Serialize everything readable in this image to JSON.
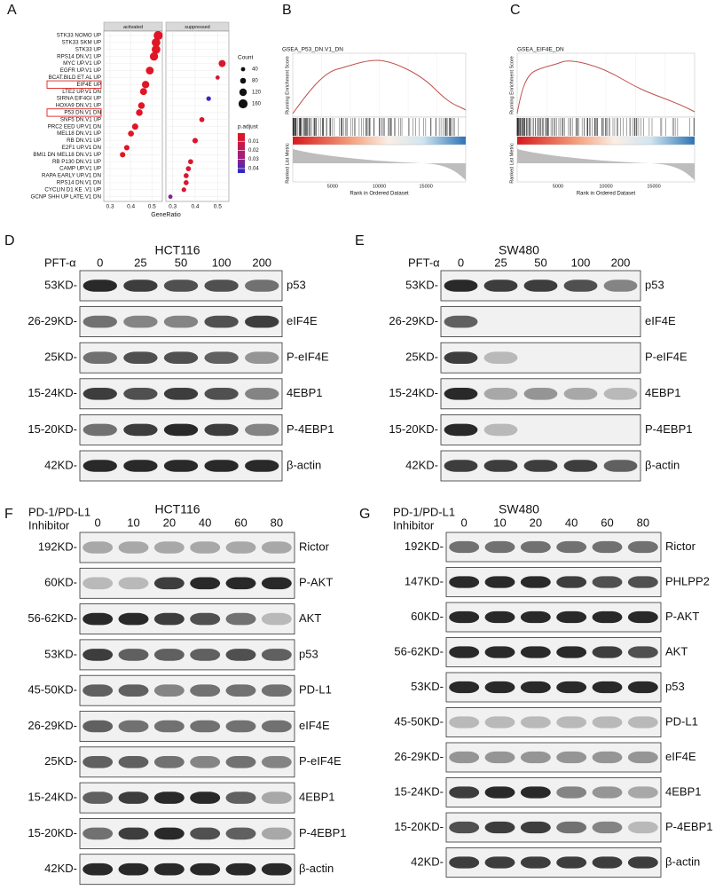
{
  "panel_labels": [
    "A",
    "B",
    "C",
    "D",
    "E",
    "F",
    "G"
  ],
  "chart_data": [
    {
      "type": "dot",
      "facets": [
        "activated",
        "suppressed"
      ],
      "xlabel": "GeneRatio",
      "categories": [
        "STK33 NOMO UP",
        "STK33 SKM UP",
        "STK33 UP",
        "RPS14 DN.V1 UP",
        "MYC UP.V1 UP",
        "EGFR UP.V1 UP",
        "BCAT.BILD ET AL UP",
        "EIF4E UP",
        "LTE2 UP.V1 DN",
        "SIRNA EIF4GI UP",
        "HOXA9 DN.V1 UP",
        "P53 DN.V1 DN",
        "SNF5 DN.V1 UP",
        "PRC2 EED UP.V1 DN",
        "MEL18 DN.V1 UP",
        "RB DN.V1 UP",
        "E2F1 UP.V1 DN",
        "BMI1 DN MEL18 DN.V1 UP",
        "RB P130 DN.V1 UP",
        "CAMP UP.V1 UP",
        "RAPA EARLY UP.V1 DN",
        "RPS14 DN.V1 DN",
        "CYCLIN D1 KE .V1 UP",
        "GCNP SHH UP LATE.V1 DN"
      ],
      "series": [
        {
          "name": "activated",
          "values": [
            0.53,
            0.52,
            0.52,
            0.51,
            null,
            0.49,
            null,
            0.47,
            0.46,
            null,
            0.45,
            0.44,
            null,
            0.42,
            0.4,
            null,
            0.38,
            0.36,
            null,
            null,
            null,
            null,
            null,
            null
          ],
          "sizes": [
            160,
            150,
            150,
            140,
            null,
            130,
            null,
            120,
            110,
            null,
            100,
            100,
            null,
            90,
            80,
            null,
            70,
            70,
            null,
            null,
            null,
            null,
            null,
            null
          ],
          "p_adjust": [
            0.003,
            0.003,
            0.003,
            0.003,
            null,
            0.003,
            null,
            0.003,
            0.003,
            null,
            0.003,
            0.003,
            null,
            0.003,
            0.003,
            null,
            0.003,
            0.003,
            null,
            null,
            null,
            null,
            null,
            null
          ]
        },
        {
          "name": "suppressed",
          "values": [
            null,
            null,
            null,
            null,
            0.52,
            null,
            0.5,
            null,
            null,
            0.46,
            null,
            null,
            0.43,
            null,
            null,
            0.4,
            null,
            null,
            0.38,
            0.37,
            0.36,
            0.36,
            0.35,
            0.29
          ],
          "sizes": [
            null,
            null,
            null,
            null,
            110,
            null,
            40,
            null,
            null,
            50,
            null,
            null,
            60,
            null,
            null,
            70,
            null,
            null,
            60,
            60,
            60,
            60,
            50,
            40
          ],
          "p_adjust": [
            null,
            null,
            null,
            null,
            0.005,
            null,
            0.01,
            null,
            null,
            0.042,
            null,
            null,
            0.005,
            null,
            null,
            0.005,
            null,
            null,
            0.005,
            0.005,
            0.005,
            0.005,
            0.006,
            0.032
          ]
        }
      ],
      "xlim": [
        0.27,
        0.55
      ],
      "xticks": [
        0.3,
        0.4,
        0.5
      ],
      "size_legend": {
        "title": "Count",
        "ticks": [
          40,
          80,
          120,
          160
        ]
      },
      "color_legend": {
        "title": "p.adjust",
        "ticks": [
          0.01,
          0.02,
          0.03,
          0.04
        ],
        "clim": [
          0.001,
          0.045
        ]
      }
    }
  ],
  "gsea": [
    {
      "title": "GSEA_P53_DN.V1_DN",
      "es_label": "Running Enrichment Score",
      "metric_label": "Ranked List Metric",
      "xlabel": "Rank in Ordered Dataset",
      "xticks": [
        "5000",
        "10000",
        "15000"
      ]
    },
    {
      "title": "GSEA_EIF4E_DN",
      "es_label": "Running Enrichment Score",
      "metric_label": "Ranked List Metric",
      "xlabel": "Rank in Ordered Dataset",
      "xticks": [
        "5000",
        "10000",
        "15000"
      ]
    }
  ],
  "blots": [
    {
      "cell_line": "HCT116",
      "treatment": [
        "PFT-α"
      ],
      "lanes": [
        "0",
        "25",
        "50",
        "100",
        "200"
      ],
      "rows": [
        {
          "size": "53KD-",
          "protein": "p53"
        },
        {
          "size": "26-29KD-",
          "protein": "eIF4E"
        },
        {
          "size": "25KD-",
          "protein": "P-eIF4E"
        },
        {
          "size": "15-24KD-",
          "protein": "4EBP1"
        },
        {
          "size": "15-20KD-",
          "protein": "P-4EBP1"
        },
        {
          "size": "42KD-",
          "protein": "β-actin"
        }
      ]
    },
    {
      "cell_line": "SW480",
      "treatment": [
        "PFT-α"
      ],
      "lanes": [
        "0",
        "25",
        "50",
        "100",
        "200"
      ],
      "rows": [
        {
          "size": "53KD-",
          "protein": "p53"
        },
        {
          "size": "26-29KD-",
          "protein": "eIF4E"
        },
        {
          "size": "25KD-",
          "protein": "P-eIF4E"
        },
        {
          "size": "15-24KD-",
          "protein": "4EBP1"
        },
        {
          "size": "15-20KD-",
          "protein": "P-4EBP1"
        },
        {
          "size": "42KD-",
          "protein": "β-actin"
        }
      ]
    },
    {
      "cell_line": "HCT116",
      "treatment": [
        "PD-1/PD-L1",
        "Inhibitor"
      ],
      "lanes": [
        "0",
        "10",
        "20",
        "40",
        "60",
        "80"
      ],
      "rows": [
        {
          "size": "192KD-",
          "protein": "Rictor"
        },
        {
          "size": "60KD-",
          "protein": "P-AKT"
        },
        {
          "size": "56-62KD-",
          "protein": "AKT"
        },
        {
          "size": "53KD-",
          "protein": "p53"
        },
        {
          "size": "45-50KD-",
          "protein": "PD-L1"
        },
        {
          "size": "26-29KD-",
          "protein": "eIF4E"
        },
        {
          "size": "25KD-",
          "protein": "P-eIF4E"
        },
        {
          "size": "15-24KD-",
          "protein": "4EBP1"
        },
        {
          "size": "15-20KD-",
          "protein": "P-4EBP1"
        },
        {
          "size": "42KD-",
          "protein": "β-actin"
        }
      ]
    },
    {
      "cell_line": "SW480",
      "treatment": [
        "PD-1/PD-L1",
        "Inhibitor"
      ],
      "lanes": [
        "0",
        "10",
        "20",
        "40",
        "60",
        "80"
      ],
      "rows": [
        {
          "size": "192KD-",
          "protein": "Rictor"
        },
        {
          "size": "147KD-",
          "protein": "PHLPP2"
        },
        {
          "size": "60KD-",
          "protein": "P-AKT"
        },
        {
          "size": "56-62KD-",
          "protein": "AKT"
        },
        {
          "size": "53KD-",
          "protein": "p53"
        },
        {
          "size": "45-50KD-",
          "protein": "PD-L1"
        },
        {
          "size": "26-29KD-",
          "protein": "eIF4E"
        },
        {
          "size": "15-24KD-",
          "protein": "4EBP1"
        },
        {
          "size": "15-20KD-",
          "protein": "P-4EBP1"
        },
        {
          "size": "42KD-",
          "protein": "β-actin"
        }
      ]
    }
  ]
}
